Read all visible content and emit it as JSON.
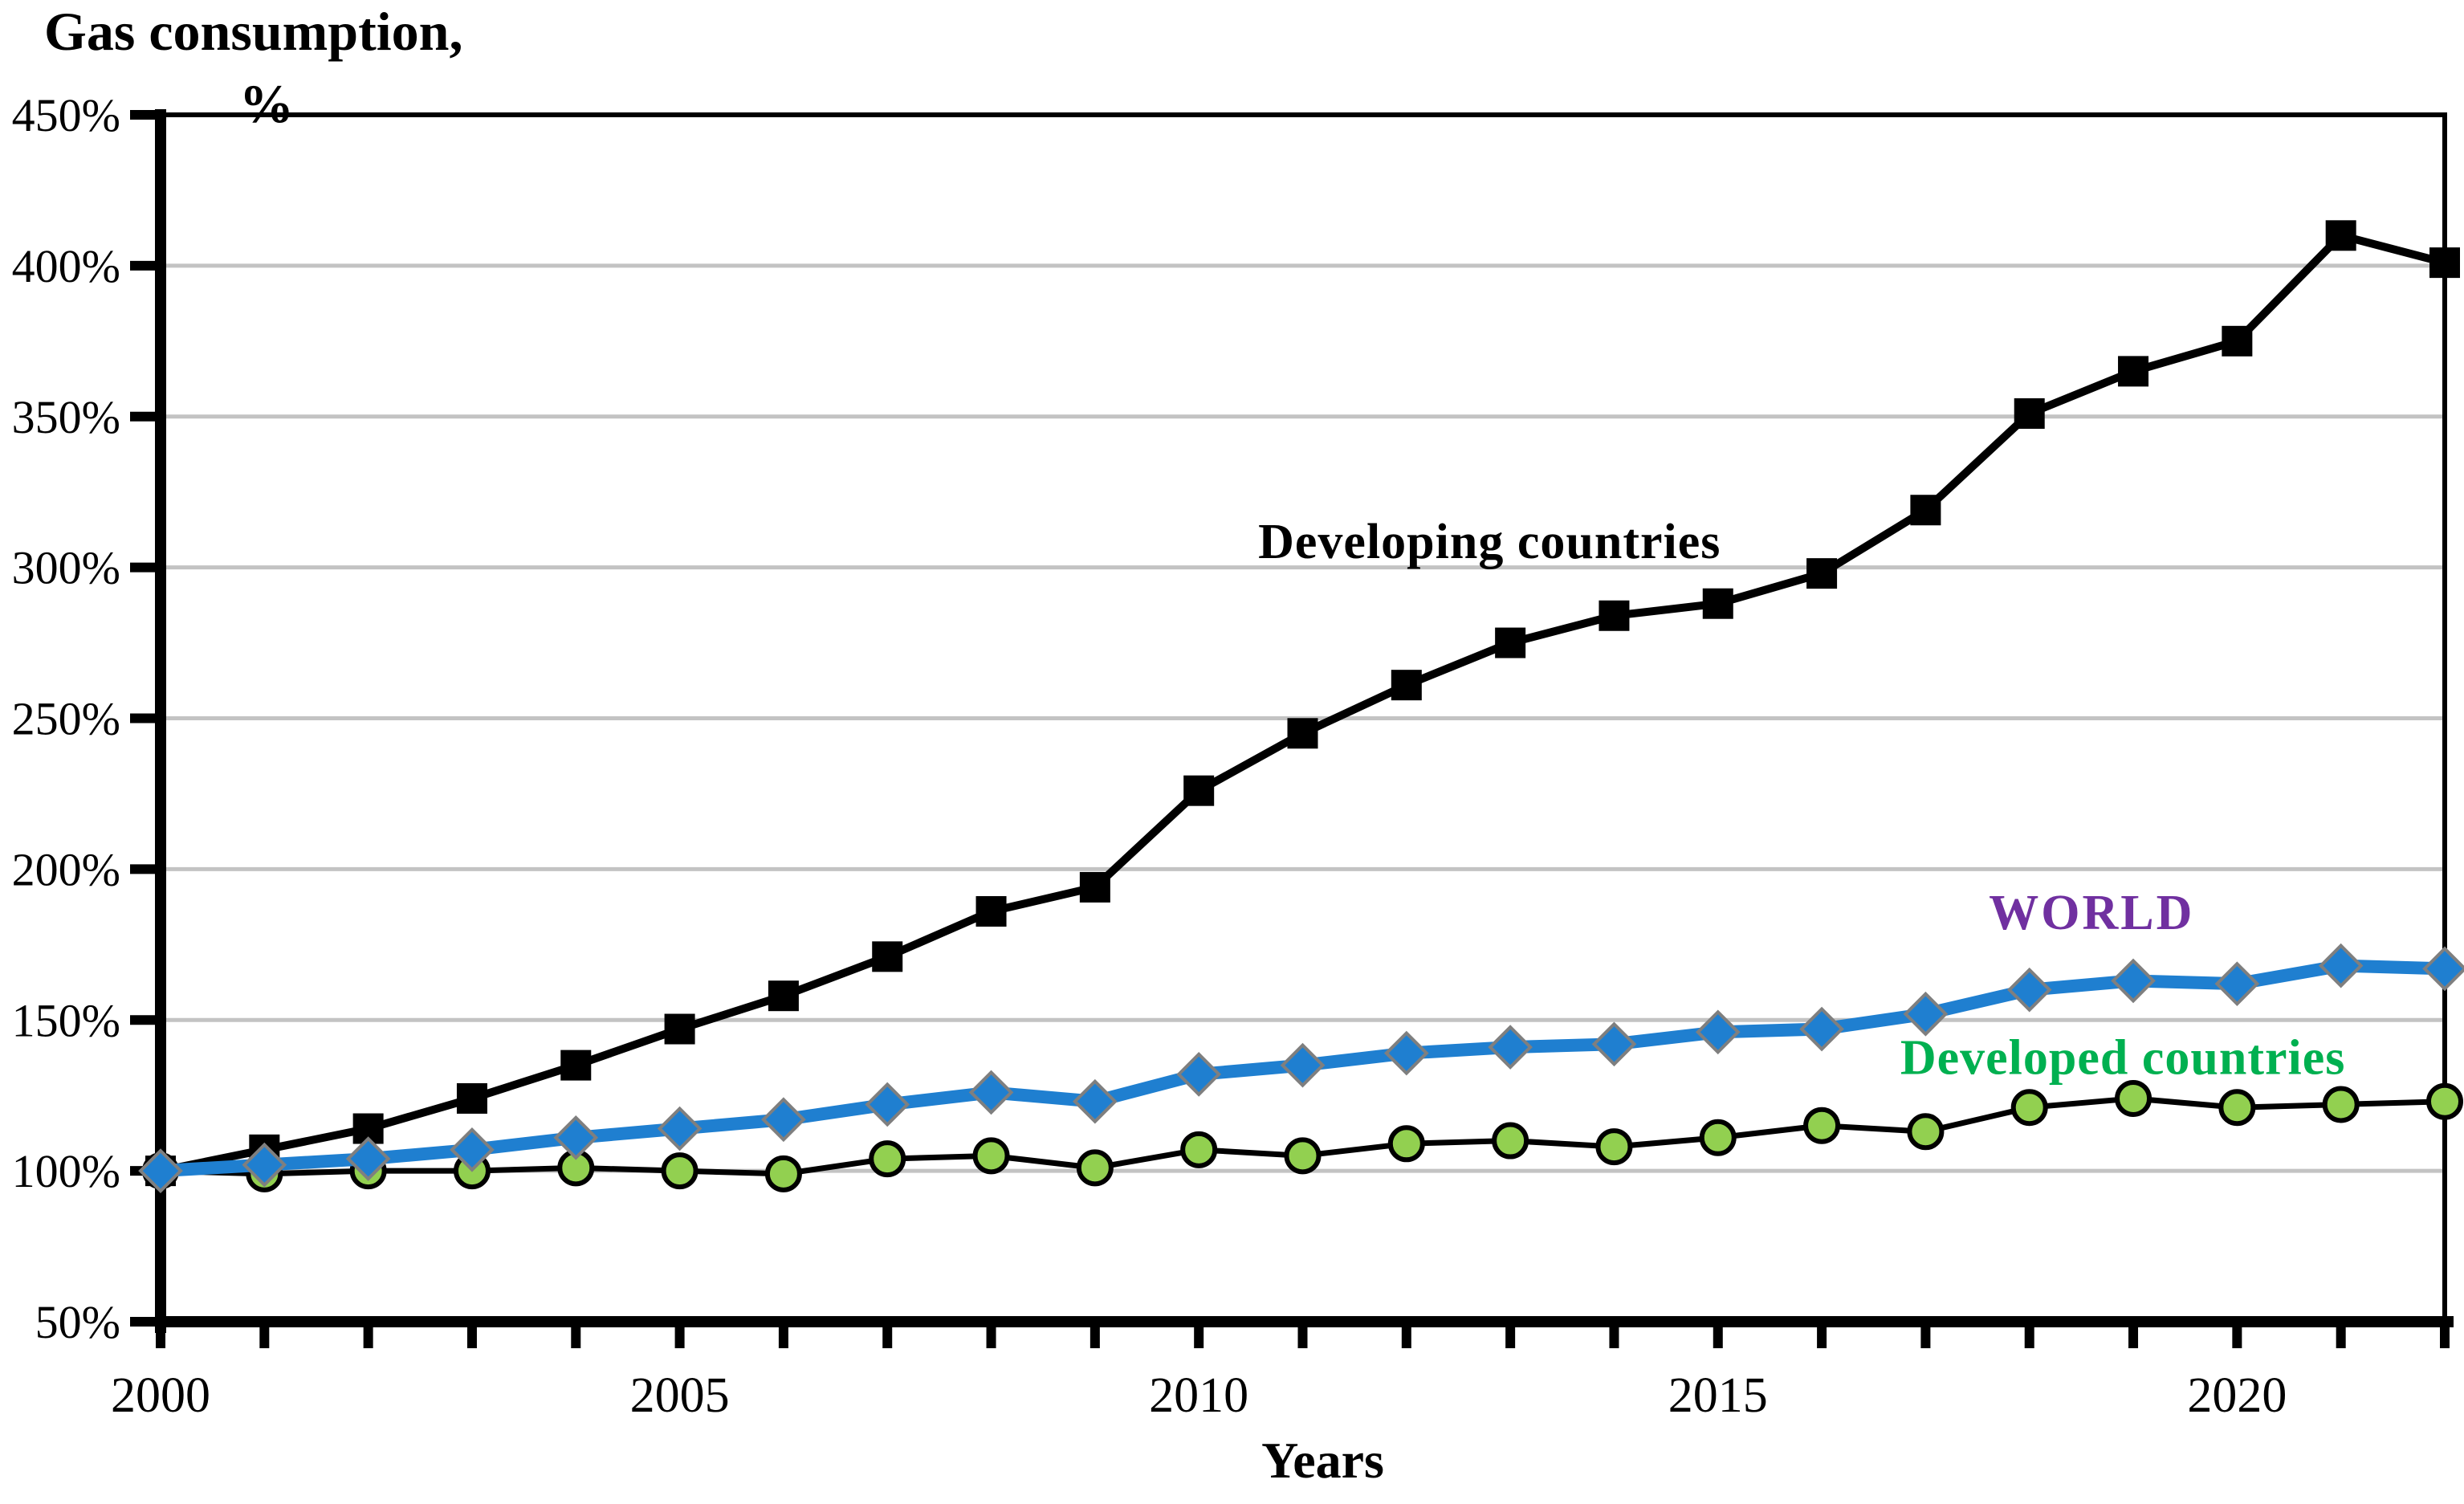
{
  "page": {
    "background": "#FFFFFF"
  },
  "chart_data": {
    "type": "line",
    "title_line1": "Gas consumption,",
    "title_line2": "%",
    "xlabel": "Years",
    "x": [
      2000,
      2001,
      2002,
      2003,
      2004,
      2005,
      2006,
      2007,
      2008,
      2009,
      2010,
      2011,
      2012,
      2013,
      2014,
      2015,
      2016,
      2017,
      2018,
      2019,
      2020,
      2021,
      2022
    ],
    "xtick_years": [
      2000,
      2005,
      2010,
      2015,
      2020
    ],
    "xtick_labels": [
      "2000",
      "2005",
      "2010",
      "2015",
      "2020"
    ],
    "ylim": [
      50,
      450
    ],
    "ytick_step": 50,
    "ytick_labels": [
      "450%",
      "400%",
      "350%",
      "300%",
      "250%",
      "200%",
      "150%",
      "100%",
      "50%"
    ],
    "grid": true,
    "grid_color": "#C3C3C3",
    "axis_color": "#000000",
    "series": [
      {
        "name": "Developing countries",
        "line_color": "#000000",
        "line_width": 10,
        "marker": "square",
        "marker_fill": "#000000",
        "marker_stroke": "#000000",
        "marker_size": 36,
        "values": [
          100,
          107,
          114,
          124,
          135,
          147,
          158,
          171,
          186,
          194,
          226,
          245,
          261,
          275,
          284,
          288,
          298,
          319,
          351,
          365,
          375,
          410,
          401
        ]
      },
      {
        "name": "Developed countries",
        "line_color": "#000000",
        "line_width": 7,
        "marker": "circle",
        "marker_fill": "#92D050",
        "marker_stroke": "#000000",
        "marker_size": 40,
        "values": [
          100,
          99,
          100,
          100,
          101,
          100,
          99,
          104,
          105,
          101,
          107,
          105,
          109,
          110,
          108,
          111,
          115,
          113,
          121,
          124,
          121,
          122,
          123
        ]
      },
      {
        "name": "WORLD",
        "line_color": "#1F7FD0",
        "line_width": 16,
        "marker": "diamond",
        "marker_fill": "#1F7FD0",
        "marker_stroke": "#7F7F7F",
        "marker_size": 50,
        "values": [
          100,
          102,
          104,
          107,
          111,
          114,
          117,
          122,
          126,
          123,
          132,
          135,
          139,
          141,
          142,
          146,
          147,
          152,
          160,
          163,
          162,
          168,
          167
        ]
      }
    ],
    "annotations": [
      {
        "text": "Developing countries",
        "color": "#000000",
        "x_year": 2012.8,
        "y_pct": 309
      },
      {
        "text": "WORLD",
        "color": "#7030A0",
        "x_year": 2018.6,
        "y_pct": 186
      },
      {
        "text": "Developed countries",
        "color": "#00B050",
        "x_year": 2018.9,
        "y_pct": 138
      }
    ]
  }
}
